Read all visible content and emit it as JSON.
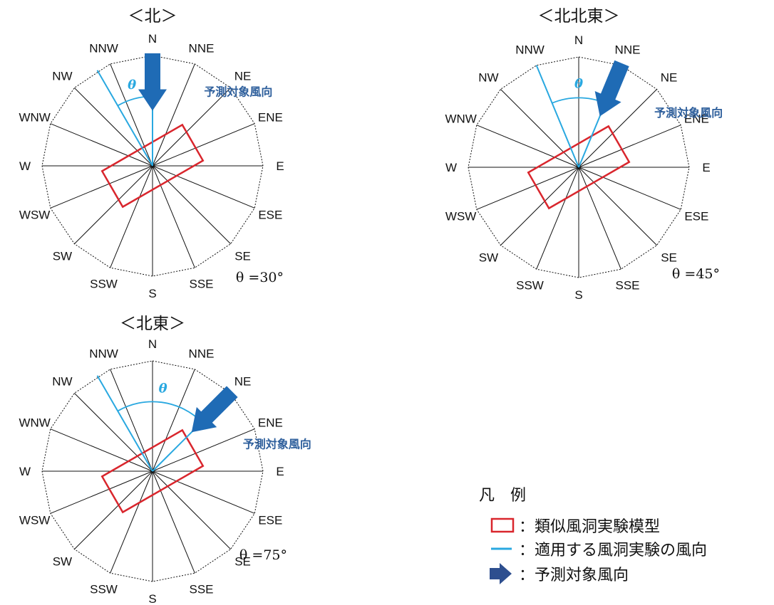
{
  "directions": [
    "N",
    "NNE",
    "NE",
    "ENE",
    "E",
    "ESE",
    "SE",
    "SSE",
    "S",
    "SSW",
    "SW",
    "WSW",
    "W",
    "WNW",
    "NW",
    "NNW"
  ],
  "colors": {
    "model_rect": "#d9262d",
    "wind_line": "#29a8e0",
    "pred_arrow": "#1f6bb5",
    "pred_label": "#2e5f9c",
    "legend_arrow": "#2e4f8f",
    "spokes": "#111111"
  },
  "diagrams": [
    {
      "title": "＜北＞",
      "theta_label": "θ",
      "theta_value": "θ =30°",
      "pred_label": "予測対象風向",
      "pred_direction_deg": 0,
      "wind_direction_deg": 330,
      "model_rotation_deg": -30
    },
    {
      "title": "＜北北東＞",
      "theta_label": "θ",
      "theta_value": "θ =45°",
      "pred_label": "予測対象風向",
      "pred_direction_deg": 22.5,
      "wind_direction_deg": 337.5,
      "model_rotation_deg": -30
    },
    {
      "title": "＜北東＞",
      "theta_label": "θ",
      "theta_value": "θ =75°",
      "pred_label": "予測対象風向",
      "pred_direction_deg": 45,
      "wind_direction_deg": 330,
      "model_rotation_deg": -30
    }
  ],
  "legend": {
    "title": "凡　例",
    "items": [
      {
        "symbol": "rect",
        "label": "：類似風洞実験模型"
      },
      {
        "symbol": "line",
        "label": "：適用する風洞実験の風向"
      },
      {
        "symbol": "arrow",
        "label": "：予測対象風向"
      }
    ]
  }
}
